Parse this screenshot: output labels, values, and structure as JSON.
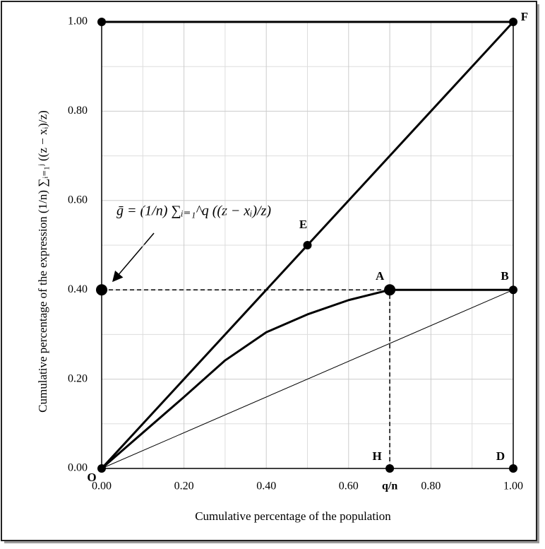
{
  "chart_data": {
    "type": "line",
    "xlabel": "Cumulative percentage of the population",
    "ylabel": "Cumulative percentage of the expression (1/n) ∑ᵢ₌₁ʲ ((z − xᵢ)/z)",
    "annotation": "ḡ = (1/n) ∑ᵢ₌₁^q ((z − xᵢ)/z)",
    "xlim": [
      0,
      1
    ],
    "ylim": [
      0,
      1
    ],
    "xticks": [
      {
        "value": 0,
        "label": "0.00"
      },
      {
        "value": 0.2,
        "label": "0.20"
      },
      {
        "value": 0.4,
        "label": "0.40"
      },
      {
        "value": 0.6,
        "label": "0.60"
      },
      {
        "value": 0.7,
        "label": "q/n"
      },
      {
        "value": 0.8,
        "label": "0.80"
      },
      {
        "value": 1,
        "label": "1.00"
      }
    ],
    "yticks": [
      {
        "value": 0,
        "label": "0.00"
      },
      {
        "value": 0.2,
        "label": "0.20"
      },
      {
        "value": 0.4,
        "label": "0.40"
      },
      {
        "value": 0.6,
        "label": "0.60"
      },
      {
        "value": 0.8,
        "label": "0.80"
      },
      {
        "value": 1,
        "label": "1.00"
      }
    ],
    "minor_xticks": [
      0.1,
      0.3,
      0.5,
      0.7,
      0.9
    ],
    "minor_yticks": [
      0.1,
      0.3,
      0.5,
      0.7,
      0.9
    ],
    "grid": true,
    "series": [
      {
        "color": "#000000",
        "style": "solid",
        "width": 3,
        "x": [
          0,
          1
        ],
        "values": [
          0,
          1
        ]
      },
      {
        "color": "#000000",
        "style": "solid",
        "width": 3,
        "x": [
          0,
          0.1,
          0.2,
          0.3,
          0.4,
          0.5,
          0.6,
          0.7,
          1
        ],
        "values": [
          0,
          0.08,
          0.16,
          0.242,
          0.305,
          0.345,
          0.377,
          0.4,
          0.4
        ]
      },
      {
        "color": "#000000",
        "style": "solid",
        "width": 1,
        "x": [
          0,
          1
        ],
        "values": [
          0,
          0.4
        ]
      },
      {
        "color": "#000000",
        "style": "solid",
        "width": 3,
        "x": [
          0,
          1
        ],
        "values": [
          1,
          1
        ]
      },
      {
        "color": "#000000",
        "style": "dashed",
        "width": 1.5,
        "x": [
          0,
          0.7
        ],
        "values": [
          0.4,
          0.4
        ]
      },
      {
        "color": "#000000",
        "style": "dashed",
        "width": 1.5,
        "x": [
          0.7,
          0.7
        ],
        "values": [
          0,
          0.4
        ]
      }
    ],
    "points": [
      {
        "label": "O",
        "x": 0,
        "y": 0
      },
      {
        "label": "E",
        "x": 0.5,
        "y": 0.5
      },
      {
        "label": "A",
        "x": 0.7,
        "y": 0.4
      },
      {
        "label": "B",
        "x": 1,
        "y": 0.4
      },
      {
        "label": "F",
        "x": 1,
        "y": 1
      },
      {
        "label": "H",
        "x": 0.7,
        "y": 0
      },
      {
        "label": "D",
        "x": 1,
        "y": 0
      }
    ],
    "unlabeled_points": [
      {
        "x": 0,
        "y": 0.4
      },
      {
        "x": 0,
        "y": 1
      }
    ]
  }
}
